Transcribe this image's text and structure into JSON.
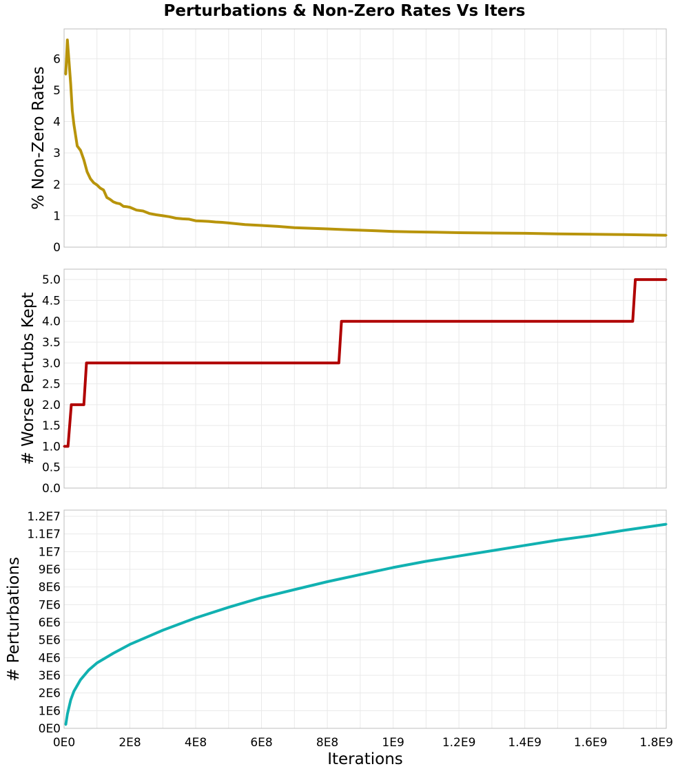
{
  "chart_data": {
    "type": "line",
    "title": "Perturbations & Non-Zero Rates Vs Iters",
    "xlabel": "Iterations",
    "x_ticks": [
      "0E0",
      "2E8",
      "4E8",
      "6E8",
      "8E8",
      "1E9",
      "1.2E9",
      "1.4E9",
      "1.6E9",
      "1.8E9"
    ],
    "x_tick_values": [
      0,
      200000000,
      400000000,
      600000000,
      800000000,
      1000000000,
      1200000000,
      1400000000,
      1600000000,
      1800000000
    ],
    "xlim": [
      0,
      1830000000
    ],
    "grid": true,
    "panels": [
      {
        "ylabel": "% Non-Zero Rates",
        "ylim": [
          0,
          6.95
        ],
        "y_ticks": [
          "0",
          "1",
          "2",
          "3",
          "4",
          "5",
          "6"
        ],
        "y_tick_values": [
          0,
          1,
          2,
          3,
          4,
          5,
          6
        ],
        "color": "#b8940b",
        "x": [
          5000000,
          10000000,
          15000000,
          20000000,
          25000000,
          30000000,
          40000000,
          50000000,
          60000000,
          70000000,
          80000000,
          90000000,
          100000000,
          110000000,
          120000000,
          130000000,
          140000000,
          150000000,
          160000000,
          170000000,
          180000000,
          190000000,
          200000000,
          220000000,
          240000000,
          260000000,
          280000000,
          300000000,
          320000000,
          340000000,
          360000000,
          380000000,
          400000000,
          420000000,
          440000000,
          460000000,
          480000000,
          500000000,
          550000000,
          600000000,
          650000000,
          700000000,
          750000000,
          800000000,
          850000000,
          900000000,
          950000000,
          1000000000,
          1050000000,
          1100000000,
          1200000000,
          1300000000,
          1400000000,
          1500000000,
          1600000000,
          1700000000,
          1830000000
        ],
        "y": [
          5.5,
          6.6,
          5.9,
          5.2,
          4.35,
          3.9,
          3.22,
          3.08,
          2.78,
          2.4,
          2.18,
          2.05,
          1.98,
          1.88,
          1.82,
          1.58,
          1.52,
          1.44,
          1.4,
          1.38,
          1.3,
          1.29,
          1.27,
          1.18,
          1.15,
          1.07,
          1.03,
          1.0,
          0.97,
          0.92,
          0.9,
          0.89,
          0.84,
          0.83,
          0.82,
          0.8,
          0.79,
          0.77,
          0.72,
          0.69,
          0.66,
          0.62,
          0.6,
          0.58,
          0.56,
          0.54,
          0.52,
          0.5,
          0.49,
          0.48,
          0.46,
          0.45,
          0.44,
          0.42,
          0.41,
          0.4,
          0.38
        ]
      },
      {
        "ylabel": "# Worse Pertubs Kept",
        "ylim": [
          0,
          5.25
        ],
        "y_ticks": [
          "0.0",
          "0.5",
          "1.0",
          "1.5",
          "2.0",
          "2.5",
          "3.0",
          "3.5",
          "4.0",
          "4.5",
          "5.0"
        ],
        "y_tick_values": [
          0,
          0.5,
          1,
          1.5,
          2,
          2.5,
          3,
          3.5,
          4,
          4.5,
          5
        ],
        "color": "#b00000",
        "x": [
          0,
          12000000,
          22000000,
          60000000,
          68000000,
          835000000,
          843000000,
          1728000000,
          1736000000,
          1830000000
        ],
        "y": [
          1,
          1,
          2,
          2,
          3,
          3,
          4,
          4,
          5,
          5
        ]
      },
      {
        "ylabel": "# Perturbations",
        "ylim": [
          0,
          12350000
        ],
        "y_ticks": [
          "0E0",
          "1E6",
          "2E6",
          "3E6",
          "4E6",
          "5E6",
          "6E6",
          "7E6",
          "8E6",
          "9E6",
          "1E7",
          "1.1E7",
          "1.2E7"
        ],
        "y_tick_values": [
          0,
          1000000,
          2000000,
          3000000,
          4000000,
          5000000,
          6000000,
          7000000,
          8000000,
          9000000,
          10000000,
          11000000,
          12000000
        ],
        "color": "#11b1b1",
        "x": [
          5000000,
          10000000,
          20000000,
          30000000,
          50000000,
          75000000,
          100000000,
          150000000,
          200000000,
          250000000,
          300000000,
          400000000,
          500000000,
          600000000,
          700000000,
          800000000,
          900000000,
          1000000000,
          1100000000,
          1200000000,
          1300000000,
          1400000000,
          1500000000,
          1600000000,
          1700000000,
          1830000000
        ],
        "y": [
          200000,
          800000,
          1600000,
          2100000,
          2750000,
          3300000,
          3700000,
          4250000,
          4750000,
          5150000,
          5550000,
          6250000,
          6850000,
          7400000,
          7850000,
          8300000,
          8700000,
          9100000,
          9450000,
          9750000,
          10050000,
          10350000,
          10650000,
          10900000,
          11200000,
          11550000
        ]
      }
    ]
  }
}
